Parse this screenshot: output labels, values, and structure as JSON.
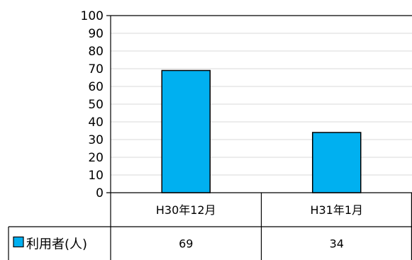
{
  "chart_data": {
    "type": "bar",
    "categories": [
      "H30年12月",
      "H31年1月"
    ],
    "series": [
      {
        "name": "利用者(人)",
        "values": [
          69,
          34
        ],
        "color": "#00b0f0"
      }
    ],
    "ylim": [
      0,
      100
    ],
    "yticks": [
      0,
      10,
      20,
      30,
      40,
      50,
      60,
      70,
      80,
      90,
      100
    ],
    "grid": true,
    "data_table": true,
    "legend": "data-table-row"
  }
}
